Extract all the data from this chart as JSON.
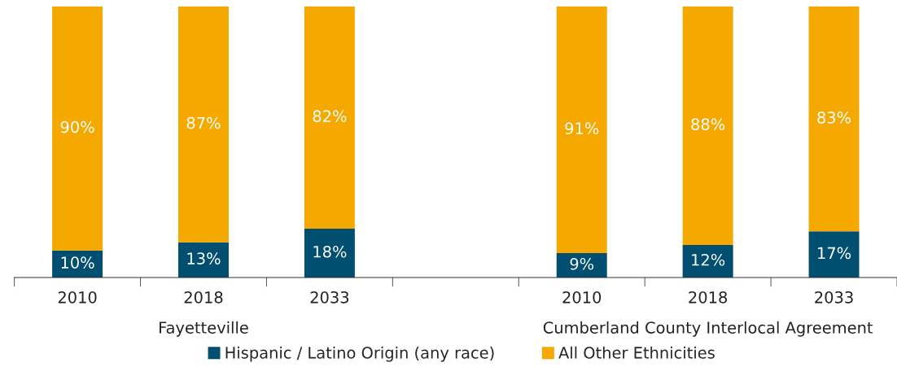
{
  "chart_data": {
    "type": "bar",
    "stacked": true,
    "categories": [
      "2010",
      "2018",
      "2033",
      null,
      "2010",
      "2018",
      "2033"
    ],
    "series": [
      {
        "name": "Hispanic / Latino Origin (any race)",
        "color": "#004f71",
        "values": [
          10,
          13,
          18,
          null,
          9,
          12,
          17
        ],
        "value_labels": [
          "10%",
          "13%",
          "18%",
          null,
          "9%",
          "12%",
          "17%"
        ]
      },
      {
        "name": "All Other Ethnicities",
        "color": "#f5a800",
        "values": [
          90,
          87,
          82,
          null,
          91,
          88,
          83
        ],
        "value_labels": [
          "90%",
          "87%",
          "82%",
          null,
          "91%",
          "88%",
          "83%"
        ]
      }
    ],
    "ylim": [
      0,
      100
    ],
    "tick_labels": "x",
    "legend": "bottom",
    "grid": false,
    "annotations": [
      "Fayetteville",
      "Cumberland County Interlocal Agreement"
    ]
  }
}
